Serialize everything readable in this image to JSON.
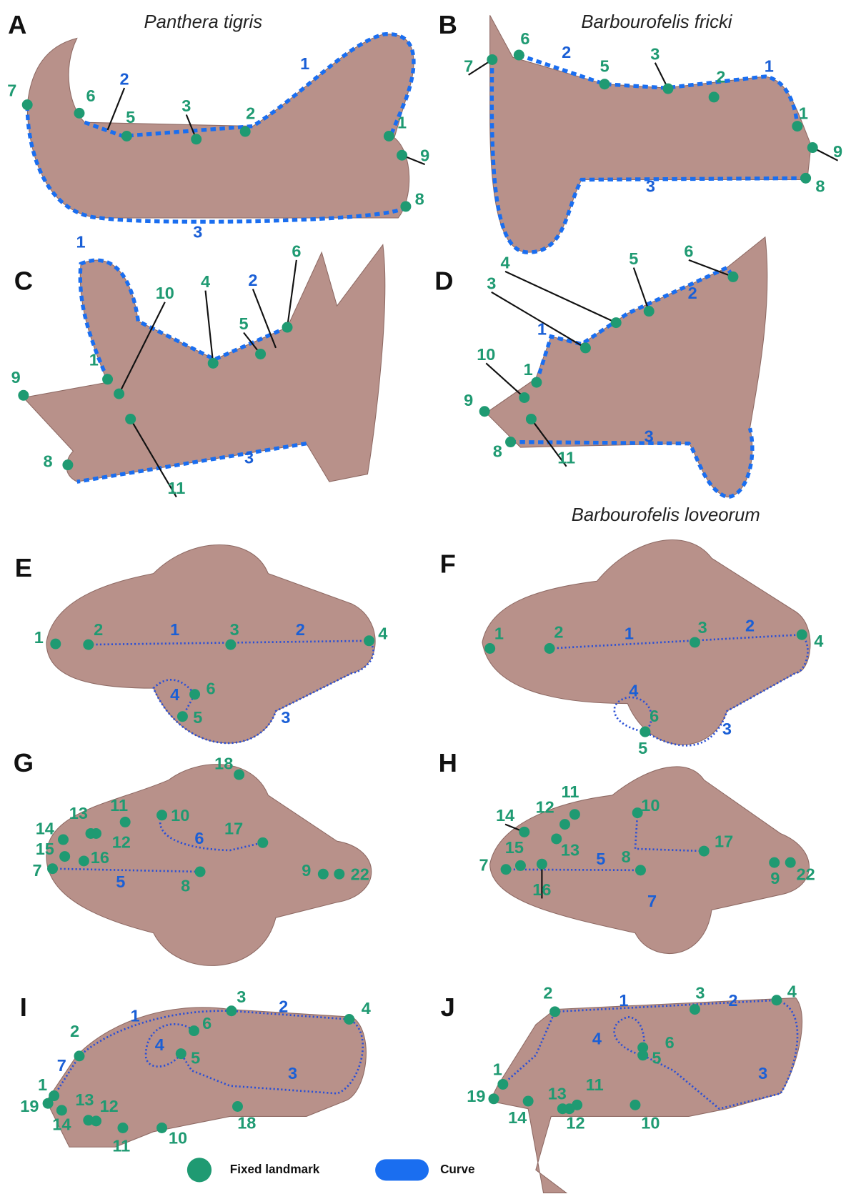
{
  "panels": [
    {
      "letter": "A",
      "title": "Panthera tigris",
      "landmarks": [
        "7",
        "6",
        "5",
        "3",
        "2",
        "1",
        "9",
        "8"
      ],
      "curves": [
        "2",
        "1",
        "3"
      ]
    },
    {
      "letter": "B",
      "title": "Barbourofelis fricki",
      "landmarks": [
        "7",
        "6",
        "5",
        "3",
        "2",
        "1",
        "9",
        "8"
      ],
      "curves": [
        "2",
        "1",
        "3"
      ]
    },
    {
      "letter": "C",
      "landmarks": [
        "1",
        "9",
        "10",
        "4",
        "5",
        "6",
        "8",
        "11"
      ],
      "curves": [
        "1",
        "2",
        "3"
      ]
    },
    {
      "letter": "D",
      "landmarks": [
        "6",
        "4",
        "5",
        "3",
        "1",
        "10",
        "9",
        "8",
        "11"
      ],
      "curves": [
        "1",
        "2",
        "3"
      ]
    },
    {
      "letter": "E",
      "landmarks": [
        "1",
        "2",
        "3",
        "4",
        "6",
        "5"
      ],
      "curves": [
        "1",
        "2",
        "4",
        "3"
      ]
    },
    {
      "letter": "F",
      "title": "Barbourofelis loveorum",
      "landmarks": [
        "1",
        "2",
        "3",
        "4",
        "6",
        "5"
      ],
      "curves": [
        "1",
        "2",
        "4",
        "3"
      ]
    },
    {
      "letter": "G",
      "landmarks": [
        "18",
        "14",
        "13",
        "11",
        "10",
        "12",
        "15",
        "16",
        "7",
        "17",
        "8",
        "9",
        "22"
      ],
      "curves": [
        "6",
        "5"
      ]
    },
    {
      "letter": "H",
      "landmarks": [
        "11",
        "12",
        "10",
        "14",
        "15",
        "13",
        "17",
        "7",
        "16",
        "8",
        "9",
        "22"
      ],
      "curves": [
        "5",
        "7"
      ]
    },
    {
      "letter": "I",
      "landmarks": [
        "3",
        "4",
        "2",
        "6",
        "5",
        "1",
        "19",
        "13",
        "12",
        "14",
        "11",
        "10",
        "18"
      ],
      "curves": [
        "1",
        "2",
        "4",
        "3",
        "7"
      ]
    },
    {
      "letter": "J",
      "landmarks": [
        "2",
        "3",
        "4",
        "6",
        "5",
        "1",
        "11",
        "19",
        "13",
        "12",
        "14",
        "10"
      ],
      "curves": [
        "1",
        "2",
        "4",
        "3"
      ]
    }
  ],
  "legend": {
    "fixed": "Fixed landmark",
    "curve": "Curve"
  }
}
